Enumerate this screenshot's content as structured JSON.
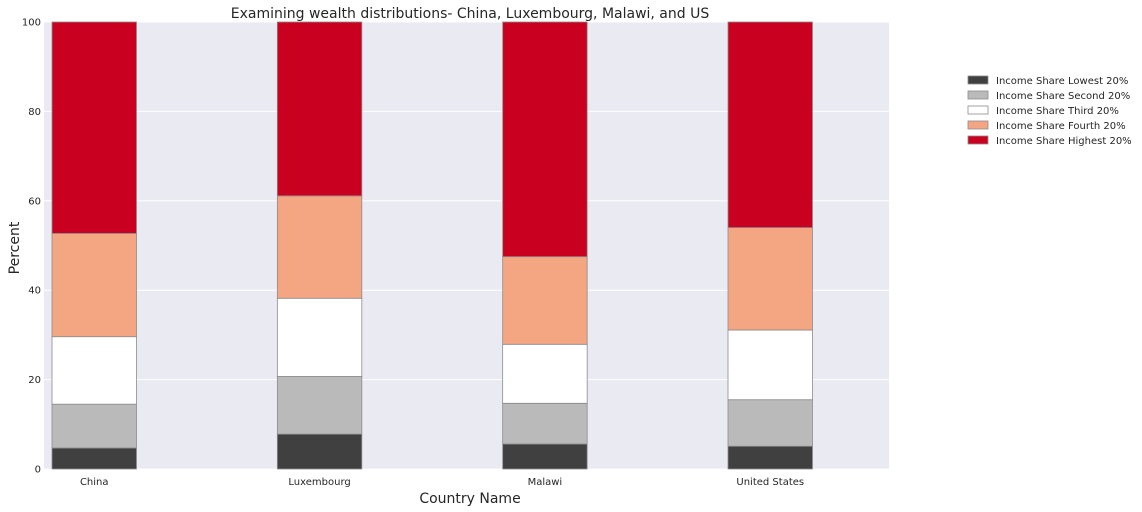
{
  "chart_data": {
    "type": "bar",
    "stacked": true,
    "title": "Examining wealth distributions- China, Luxembourg, Malawi, and US",
    "xlabel": "Country Name",
    "ylabel": "Percent",
    "ylim": [
      0,
      100
    ],
    "yticks": [
      0,
      20,
      40,
      60,
      80,
      100
    ],
    "grid": true,
    "legend_position": "top-right",
    "categories": [
      "China",
      "Luxembourg",
      "Malawi",
      "United States"
    ],
    "series": [
      {
        "name": "Income Share Lowest 20%",
        "color": "#404040",
        "values": [
          4.7,
          7.8,
          5.6,
          5.1
        ]
      },
      {
        "name": "Income Share Second 20%",
        "color": "#BABABA",
        "values": [
          9.8,
          12.9,
          9.1,
          10.4
        ]
      },
      {
        "name": "Income Share Third 20%",
        "color": "#FFFFFF",
        "values": [
          15.1,
          17.5,
          13.2,
          15.6
        ]
      },
      {
        "name": "Income Share Fourth 20%",
        "color": "#F4A582",
        "values": [
          23.1,
          22.9,
          19.6,
          22.9
        ]
      },
      {
        "name": "Income Share Highest 20%",
        "color": "#CA0020",
        "values": [
          47.3,
          38.9,
          52.5,
          46.0
        ]
      }
    ],
    "colors": {
      "plot_background": "#EAEAF2",
      "grid": "#FFFFFF",
      "bar_edge": "#8C8C8C"
    }
  }
}
